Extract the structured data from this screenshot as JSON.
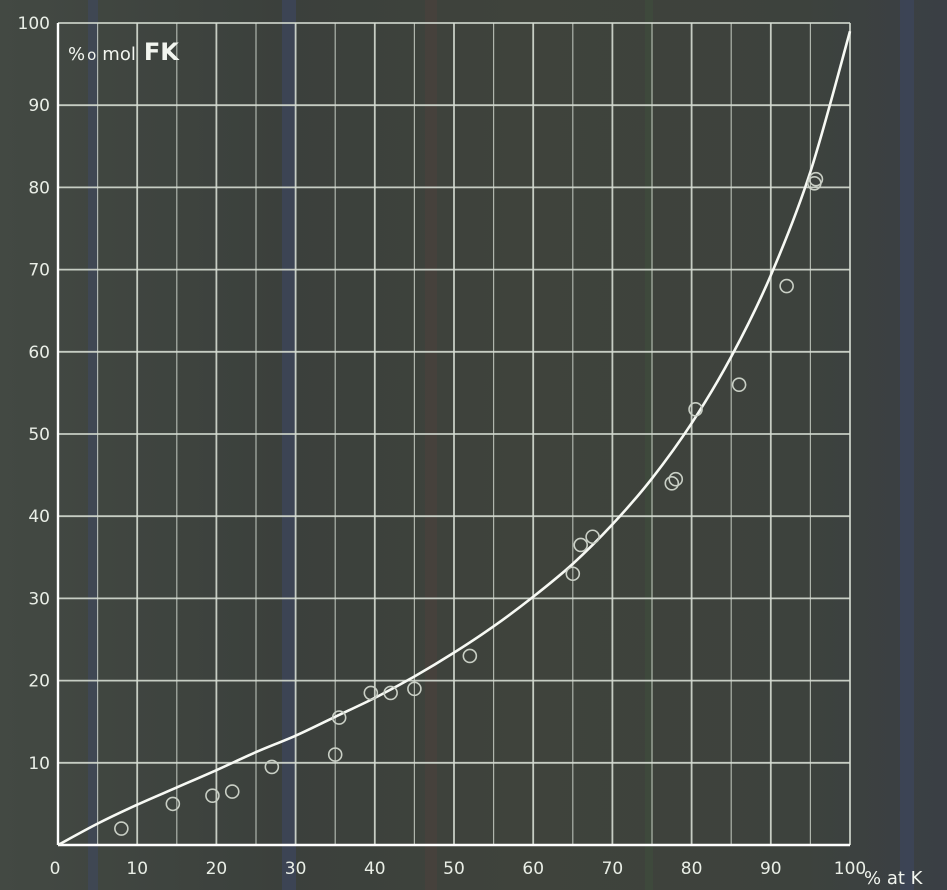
{
  "chart_data": {
    "type": "scatter",
    "xlabel": "% at K",
    "ylabel_prefix": "%",
    "ylabel_mid": "mol",
    "ylabel_main": "FK",
    "xlim": [
      0,
      100
    ],
    "ylim": [
      0,
      100
    ],
    "grid": true,
    "x_ticks": [
      0,
      10,
      20,
      30,
      40,
      50,
      60,
      70,
      80,
      90,
      100
    ],
    "x_tick_labels": [
      "0",
      "10",
      "20",
      "30",
      "40",
      "50",
      "60",
      "70",
      "80",
      "90",
      "100"
    ],
    "y_ticks": [
      10,
      20,
      30,
      40,
      50,
      60,
      70,
      80,
      90,
      100
    ],
    "y_tick_labels": [
      "10",
      "20",
      "30",
      "40",
      "50",
      "60",
      "70",
      "80",
      "90",
      "100"
    ],
    "series": [
      {
        "kind": "scatter",
        "marker": "open-circle",
        "x": [
          8,
          14.5,
          19.5,
          22,
          27,
          35,
          35.5,
          39.5,
          42,
          45,
          52,
          65,
          66,
          67.5,
          77.5,
          78,
          80.5,
          86,
          92,
          95.5,
          95.7
        ],
        "y": [
          2,
          5,
          6,
          6.5,
          9.5,
          11,
          15.5,
          18.5,
          18.5,
          19,
          23,
          33,
          36.5,
          37.5,
          44,
          44.5,
          53,
          56,
          68,
          80.5,
          81
        ]
      },
      {
        "kind": "curve",
        "x": [
          0,
          5,
          10,
          15,
          20,
          25,
          30,
          35,
          40,
          45,
          50,
          55,
          60,
          65,
          70,
          75,
          80,
          85,
          90,
          95,
          100
        ],
        "y": [
          0,
          2.6,
          4.9,
          7.0,
          9.1,
          11.3,
          13.3,
          15.6,
          17.9,
          20.5,
          23.4,
          26.6,
          30.2,
          34.2,
          39.0,
          44.6,
          51.3,
          59.4,
          69.3,
          81.9,
          99
        ]
      }
    ]
  },
  "colors": {
    "background": "#3e433d",
    "grid": "#d5dcd2",
    "curve": "#f7f9f4",
    "marker": "#c9cfc5",
    "text": "#e9eee6"
  }
}
